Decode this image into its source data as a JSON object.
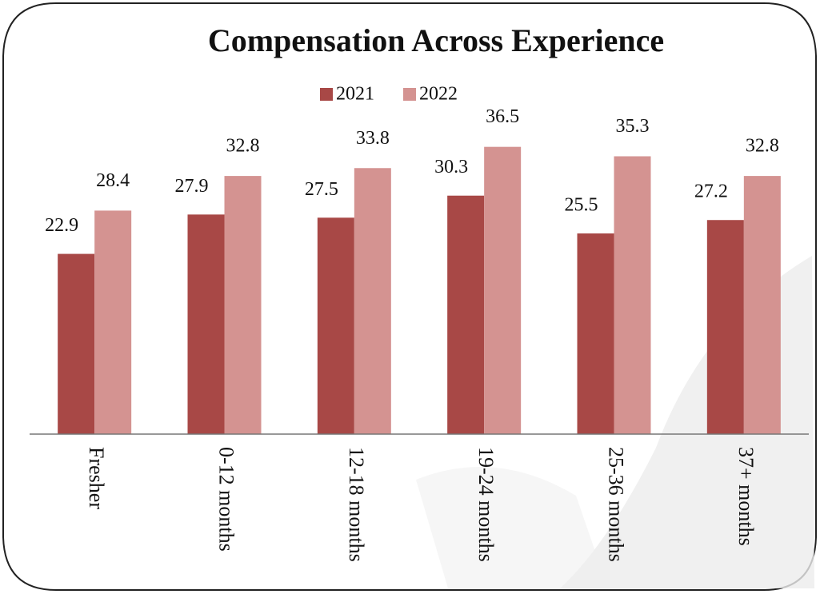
{
  "chart_data": {
    "type": "bar",
    "title": "Compensation Across Experience",
    "categories": [
      "Fresher",
      "0-12 months",
      "12-18 months",
      "19-24 months",
      "25-36 months",
      "37+ months"
    ],
    "series": [
      {
        "name": "2021",
        "color": "#a84846",
        "values": [
          22.9,
          27.9,
          27.5,
          30.3,
          25.5,
          27.2
        ]
      },
      {
        "name": "2022",
        "color": "#d49391",
        "values": [
          28.4,
          32.8,
          33.8,
          36.5,
          35.3,
          32.8
        ]
      }
    ],
    "ylim": [
      0,
      45
    ],
    "legend": "top"
  }
}
